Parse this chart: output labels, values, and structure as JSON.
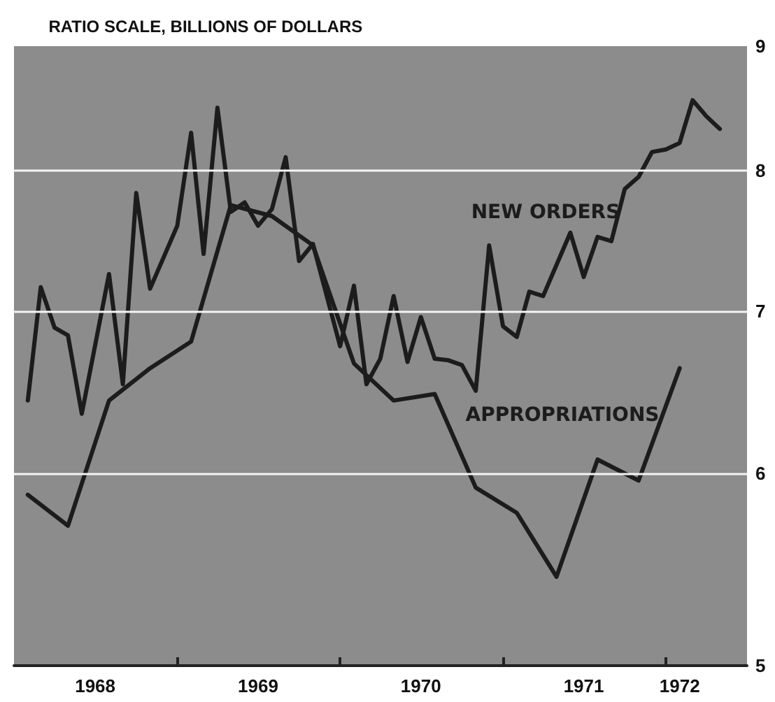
{
  "chart_data": {
    "type": "line",
    "ylabel": "RATIO SCALE, BILLIONS OF DOLLARS",
    "log": "y",
    "ylim": [
      5,
      9
    ],
    "yticks": [
      5,
      6,
      7,
      8,
      9
    ],
    "grid": "y",
    "legend": false,
    "marker": "none",
    "line_style": "solid",
    "xlim": [
      "1968-01",
      "1972-07"
    ],
    "xticks": [
      {
        "value": "1968-07",
        "label": "1968"
      },
      {
        "value": "1969-01",
        "label": null
      },
      {
        "value": "1969-07",
        "label": "1969"
      },
      {
        "value": "1970-01",
        "label": null
      },
      {
        "value": "1970-07",
        "label": "1970"
      },
      {
        "value": "1971-01",
        "label": null
      },
      {
        "value": "1971-07",
        "label": "1971"
      },
      {
        "value": "1972-01",
        "label": null
      },
      {
        "value": "1972-02",
        "label": "1972"
      }
    ],
    "series": [
      {
        "name": "NEW ORDERS",
        "color": "#1c1c1c",
        "x": [
          "1968-02",
          "1968-03",
          "1968-04",
          "1968-05",
          "1968-06",
          "1968-08",
          "1968-09",
          "1968-10",
          "1968-11",
          "1969-01",
          "1969-02",
          "1969-03",
          "1969-04",
          "1969-05",
          "1969-06",
          "1969-07",
          "1969-08",
          "1969-09",
          "1969-10",
          "1969-11",
          "1970-01",
          "1970-02",
          "1970-03",
          "1970-04",
          "1970-05",
          "1970-06",
          "1970-07",
          "1970-08",
          "1970-09",
          "1970-10",
          "1970-11",
          "1970-12",
          "1971-01",
          "1971-02",
          "1971-03",
          "1971-04",
          "1971-06",
          "1971-07",
          "1971-08",
          "1971-09",
          "1971-10",
          "1971-11",
          "1971-12",
          "1972-01",
          "1972-02",
          "1972-03",
          "1972-04",
          "1972-05"
        ],
        "values": [
          6.43,
          7.16,
          6.89,
          6.84,
          6.35,
          7.25,
          6.53,
          7.83,
          7.15,
          7.59,
          8.29,
          7.39,
          8.49,
          7.69,
          7.76,
          7.59,
          7.71,
          8.1,
          7.34,
          7.46,
          6.77,
          7.17,
          6.53,
          6.69,
          7.1,
          6.67,
          6.96,
          6.69,
          6.68,
          6.65,
          6.49,
          7.45,
          6.9,
          6.83,
          7.13,
          7.1,
          7.54,
          7.23,
          7.51,
          7.48,
          7.86,
          7.95,
          8.14,
          8.16,
          8.21,
          8.55,
          8.42,
          8.32
        ]
      },
      {
        "name": "APPROPRIATIONS",
        "color": "#1c1c1c",
        "x": [
          "1968-02",
          "1968-05",
          "1968-08",
          "1968-11",
          "1969-02",
          "1969-05",
          "1969-08",
          "1969-11",
          "1970-02",
          "1970-05",
          "1970-08",
          "1970-11",
          "1971-02",
          "1971-05",
          "1971-08",
          "1971-11",
          "1972-02"
        ],
        "values": [
          5.88,
          5.71,
          6.43,
          6.63,
          6.8,
          7.74,
          7.66,
          7.45,
          6.66,
          6.43,
          6.47,
          5.92,
          5.78,
          5.44,
          6.08,
          5.96,
          6.63
        ]
      }
    ]
  }
}
